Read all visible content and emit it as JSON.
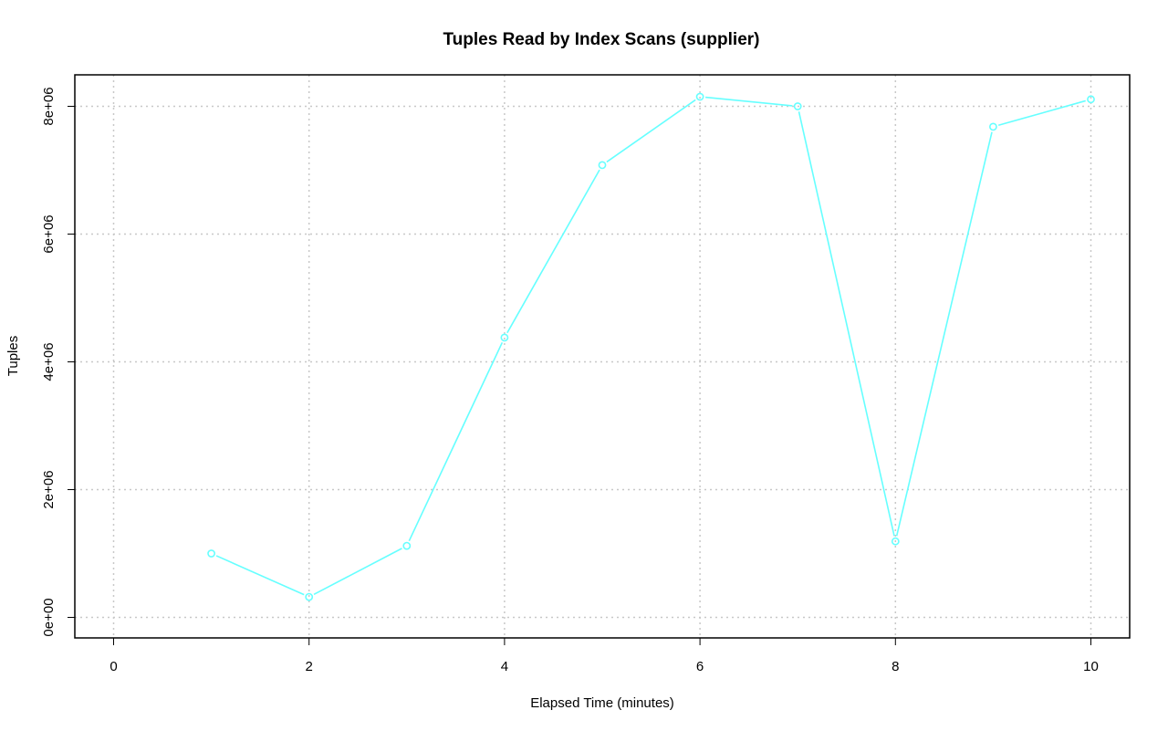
{
  "chart_data": {
    "type": "line",
    "title": "Tuples Read by Index Scans (supplier)",
    "xlabel": "Elapsed Time (minutes)",
    "ylabel": "Tuples",
    "xlim": [
      0,
      10
    ],
    "ylim": [
      0,
      8000000
    ],
    "x_ticks": [
      0,
      2,
      4,
      6,
      8,
      10
    ],
    "x_tick_labels": [
      "0",
      "2",
      "4",
      "6",
      "8",
      "10"
    ],
    "y_ticks": [
      0,
      2000000,
      4000000,
      6000000,
      8000000
    ],
    "y_tick_labels": [
      "0e+00",
      "2e+06",
      "4e+06",
      "6e+06",
      "8e+06"
    ],
    "grid": true,
    "legend": false,
    "series": [
      {
        "color": "#66ffff",
        "marker": "open-circle",
        "x": [
          1,
          2,
          3,
          4,
          5,
          6,
          7,
          8,
          9,
          10
        ],
        "y": [
          1000000,
          320000,
          1120000,
          4380000,
          7080000,
          8150000,
          8000000,
          1190000,
          7680000,
          8110000
        ]
      }
    ]
  }
}
